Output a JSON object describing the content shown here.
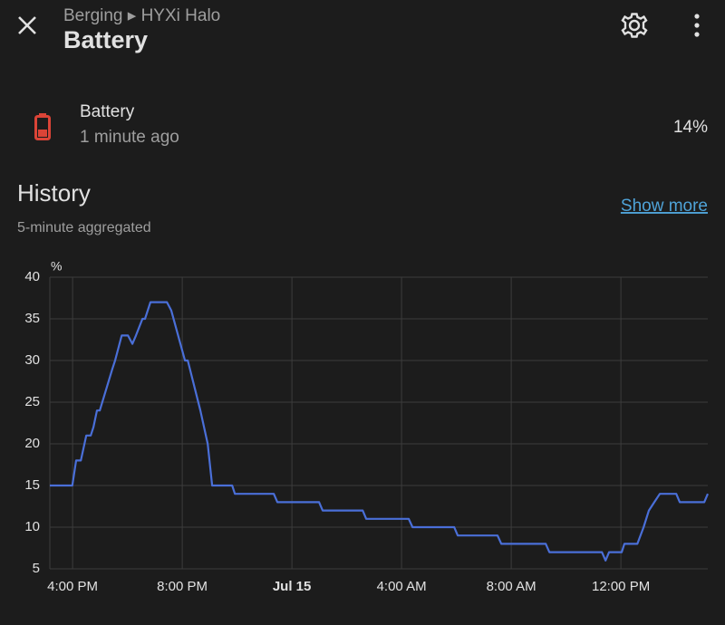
{
  "header": {
    "breadcrumb": "Berging ▸ HYXi Halo",
    "title": "Battery"
  },
  "entity": {
    "name": "Battery",
    "updated": "1 minute ago",
    "state": "14%"
  },
  "history": {
    "title": "History",
    "subtitle": "5-minute aggregated",
    "link": "Show more"
  },
  "chart_data": {
    "type": "line",
    "y_label": "%",
    "x": [
      15.17,
      15.99,
      16.13,
      16.3,
      16.5,
      16.66,
      16.76,
      16.89,
      16.99,
      17.45,
      17.55,
      17.79,
      18.02,
      18.18,
      18.31,
      18.55,
      18.64,
      18.84,
      19.44,
      19.6,
      20.1,
      20.2,
      20.66,
      20.93,
      21.09,
      21.82,
      21.92,
      23.34,
      23.47,
      24.99,
      25.12,
      26.58,
      26.71,
      28.26,
      28.4,
      29.92,
      30.05,
      31.5,
      31.64,
      33.26,
      33.39,
      35.31,
      35.44,
      35.57,
      36.03,
      36.13,
      36.6,
      36.83,
      37.02,
      37.22,
      37.42,
      38.02,
      38.15,
      39.04,
      39.17
    ],
    "series": [
      {
        "name": "Battery",
        "color": "#4a6fd8",
        "values": [
          15,
          15,
          18,
          18,
          21,
          21,
          22,
          24,
          24,
          29,
          30,
          33,
          33,
          32,
          33,
          35,
          35,
          37,
          37,
          36,
          30,
          30,
          24,
          20,
          15,
          15,
          14,
          14,
          13,
          13,
          12,
          12,
          11,
          11,
          10,
          10,
          9,
          9,
          8,
          8,
          7,
          7,
          6,
          7,
          7,
          8,
          8,
          10,
          12,
          13,
          14,
          14,
          13,
          13,
          14
        ]
      }
    ],
    "xlim": [
      15.17,
      39.17
    ],
    "xticks": [
      {
        "value": 16,
        "label": "4:00 PM"
      },
      {
        "value": 20,
        "label": "8:00 PM"
      },
      {
        "value": 24,
        "label": "Jul 15"
      },
      {
        "value": 28,
        "label": "4:00 AM"
      },
      {
        "value": 32,
        "label": "8:00 AM"
      },
      {
        "value": 36,
        "label": "12:00 PM"
      }
    ],
    "ylim": [
      5,
      40
    ],
    "yticks": [
      5,
      10,
      15,
      20,
      25,
      30,
      35,
      40
    ],
    "grid": true
  }
}
